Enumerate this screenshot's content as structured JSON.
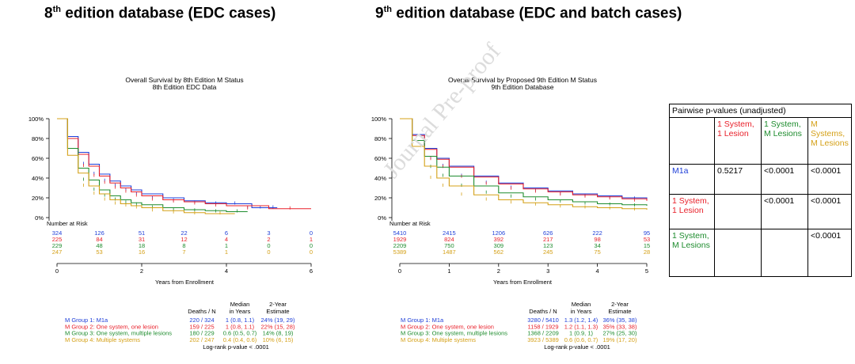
{
  "headings": {
    "left": {
      "pre": "8",
      "sup": "th",
      "post": " edition database (EDC cases)"
    },
    "right": {
      "pre": "9",
      "sup": "th",
      "post": " edition database (EDC and batch cases)"
    }
  },
  "watermark": "Journal Pre-proof",
  "colors": {
    "blue": "#1f3fd8",
    "red": "#e8202a",
    "green": "#1e8c2e",
    "orange": "#d4a017"
  },
  "chart_data": [
    {
      "type": "line",
      "title": "Overall Survival by 8th Edition M Status",
      "subtitle": "8th Edition EDC Data",
      "xlabel": "Years from Enrollment",
      "ylabel": "",
      "xlim": [
        0,
        6
      ],
      "ylim": [
        0,
        100
      ],
      "x_ticks": [
        "0",
        "2",
        "4",
        "6"
      ],
      "y_ticks": [
        "0%",
        "20%",
        "40%",
        "60%",
        "80%",
        "100%"
      ],
      "risk_label": "Number at Risk",
      "risk_times": [
        0,
        1,
        2,
        3,
        4,
        5,
        6
      ],
      "series": [
        {
          "name": "M Group 1: M1a",
          "color": "#1f3fd8",
          "x": [
            0,
            0.25,
            0.5,
            0.75,
            1,
            1.25,
            1.5,
            1.75,
            2,
            2.5,
            3,
            3.5,
            4,
            4.4,
            4.6,
            5,
            5.2
          ],
          "y": [
            100,
            82,
            66,
            54,
            44,
            37,
            32,
            28,
            24,
            20,
            17,
            15,
            14,
            14,
            10,
            10,
            10
          ],
          "risk": [
            "324",
            "126",
            "51",
            "22",
            "6",
            "3",
            "0"
          ]
        },
        {
          "name": "M Group 2: One system, one lesion",
          "color": "#e8202a",
          "x": [
            0,
            0.25,
            0.5,
            0.75,
            1,
            1.25,
            1.5,
            1.75,
            2,
            2.5,
            3,
            3.5,
            4,
            5,
            6
          ],
          "y": [
            100,
            80,
            64,
            52,
            42,
            35,
            30,
            26,
            22,
            18,
            16,
            14,
            12,
            9,
            9
          ],
          "risk": [
            "225",
            "84",
            "31",
            "12",
            "4",
            "2",
            "1"
          ]
        },
        {
          "name": "M Group 3: One system, multiple lesions",
          "color": "#1e8c2e",
          "x": [
            0,
            0.25,
            0.5,
            0.75,
            1,
            1.25,
            1.5,
            1.75,
            2,
            2.5,
            3,
            3.5,
            4,
            4.5
          ],
          "y": [
            100,
            70,
            50,
            38,
            28,
            22,
            18,
            15,
            13,
            10,
            8,
            7,
            6,
            6
          ],
          "risk": [
            "229",
            "48",
            "18",
            "8",
            "1",
            "0",
            "0"
          ]
        },
        {
          "name": "M Group 4: Multiple systems",
          "color": "#d4a017",
          "x": [
            0,
            0.25,
            0.5,
            0.75,
            1,
            1.25,
            1.5,
            1.75,
            2,
            2.5,
            3,
            3.5,
            4.2
          ],
          "y": [
            100,
            63,
            45,
            32,
            24,
            18,
            14,
            12,
            10,
            7,
            5,
            4,
            4
          ],
          "risk": [
            "247",
            "53",
            "16",
            "7",
            "1",
            "0",
            "0"
          ]
        }
      ],
      "summary": {
        "headers": [
          "Deaths / N",
          "Median\nin Years",
          "2-Year\nEstimate"
        ],
        "rows": [
          {
            "label": "M Group 1: M1a",
            "deaths": "220 / 324",
            "median": "1 (0.8, 1.1)",
            "estimate": "24% (19, 29)",
            "color": "#1f3fd8"
          },
          {
            "label": "M Group 2: One system, one lesion",
            "deaths": "159 / 225",
            "median": "1 (0.8, 1.1)",
            "estimate": "22% (15, 28)",
            "color": "#e8202a"
          },
          {
            "label": "M Group 3: One system, multiple lesions",
            "deaths": "180 / 229",
            "median": "0.6 (0.5, 0.7)",
            "estimate": "14% (8, 19)",
            "color": "#1e8c2e"
          },
          {
            "label": "M Group 4: Multiple systems",
            "deaths": "202 / 247",
            "median": "0.4 (0.4, 0.6)",
            "estimate": "10% (6, 15)",
            "color": "#d4a017"
          }
        ],
        "logrank": "Log-rank p-value < .0001"
      }
    },
    {
      "type": "line",
      "title": "Overall Survival by Proposed 9th Edition M Status",
      "subtitle": "9th Edition Database",
      "xlabel": "Years from Enrollment",
      "ylabel": "",
      "xlim": [
        0,
        5
      ],
      "ylim": [
        0,
        100
      ],
      "x_ticks": [
        "0",
        "1",
        "2",
        "3",
        "4",
        "5"
      ],
      "y_ticks": [
        "0%",
        "20%",
        "40%",
        "60%",
        "80%",
        "100%"
      ],
      "risk_label": "Number at Risk",
      "risk_times": [
        0,
        1,
        2,
        3,
        4,
        5
      ],
      "series": [
        {
          "name": "M Group 1: M1a",
          "color": "#1f3fd8",
          "x": [
            0,
            0.25,
            0.5,
            0.75,
            1,
            1.5,
            2,
            2.5,
            3,
            3.5,
            4,
            4.5,
            5
          ],
          "y": [
            100,
            84,
            70,
            60,
            52,
            42,
            35,
            30,
            27,
            24,
            22,
            20,
            19
          ],
          "risk": [
            "5410",
            "2415",
            "1206",
            "626",
            "222",
            "95"
          ]
        },
        {
          "name": "M Group 2: One system, one lesion",
          "color": "#e8202a",
          "x": [
            0,
            0.25,
            0.5,
            0.75,
            1,
            1.5,
            2,
            2.5,
            3,
            3.5,
            4,
            4.5,
            5
          ],
          "y": [
            100,
            83,
            69,
            59,
            51,
            41,
            34,
            29,
            26,
            23,
            21,
            19,
            17
          ],
          "risk": [
            "1929",
            "824",
            "392",
            "217",
            "98",
            "53"
          ]
        },
        {
          "name": "M Group 3: One system, multiple lesions",
          "color": "#1e8c2e",
          "x": [
            0,
            0.25,
            0.5,
            0.75,
            1,
            1.5,
            2,
            2.5,
            3,
            3.5,
            4,
            4.5,
            5
          ],
          "y": [
            100,
            78,
            62,
            51,
            42,
            32,
            25,
            21,
            18,
            16,
            14,
            13,
            12
          ],
          "risk": [
            "2209",
            "750",
            "309",
            "123",
            "34",
            "15"
          ]
        },
        {
          "name": "M Group 4: Multiple systems",
          "color": "#d4a017",
          "x": [
            0,
            0.25,
            0.5,
            0.75,
            1,
            1.5,
            2,
            2.5,
            3,
            3.5,
            4,
            4.5,
            5
          ],
          "y": [
            100,
            72,
            52,
            40,
            32,
            23,
            18,
            15,
            13,
            11,
            10,
            9,
            8
          ],
          "risk": [
            "5389",
            "1487",
            "562",
            "245",
            "75",
            "28"
          ]
        }
      ],
      "summary": {
        "headers": [
          "Deaths / N",
          "Median\nin Years",
          "2-Year\nEstimate"
        ],
        "rows": [
          {
            "label": "M Group 1: M1a",
            "deaths": "3280 / 5410",
            "median": "1.3 (1.2, 1.4)",
            "estimate": "36% (35, 38)",
            "color": "#1f3fd8"
          },
          {
            "label": "M Group 2: One system, one lesion",
            "deaths": "1158 / 1929",
            "median": "1.2 (1.1, 1.3)",
            "estimate": "35% (33, 38)",
            "color": "#e8202a"
          },
          {
            "label": "M Group 3: One system, multiple lesions",
            "deaths": "1368 / 2209",
            "median": "1 (0.9, 1)",
            "estimate": "27% (25, 30)",
            "color": "#1e8c2e"
          },
          {
            "label": "M Group 4: Multiple systems",
            "deaths": "3923 / 5389",
            "median": "0.6 (0.6, 0.7)",
            "estimate": "19% (17, 20)",
            "color": "#d4a017"
          }
        ],
        "logrank": "Log-rank p-value < .0001"
      }
    }
  ],
  "pvalue_table": {
    "title": "Pairwise p-values (unadjusted)",
    "col_headers": [
      {
        "line1": "1 System,",
        "line2": "1 Lesion",
        "color": "#e8202a"
      },
      {
        "line1": "1 System,",
        "line2": "M Lesions",
        "color": "#1e8c2e"
      },
      {
        "line1": "M",
        "line2": "Systems, M Lesions",
        "color": "#d4a017"
      }
    ],
    "rows": [
      {
        "line1": "M1a",
        "line2": "",
        "color": "#1f3fd8",
        "cells": [
          "0.5217",
          "<0.0001",
          "<0.0001"
        ]
      },
      {
        "line1": "1 System,",
        "line2": "1 Lesion",
        "color": "#e8202a",
        "cells": [
          "",
          "<0.0001",
          "<0.0001"
        ]
      },
      {
        "line1": "1 System,",
        "line2": "M Lesions",
        "color": "#1e8c2e",
        "cells": [
          "",
          "",
          "<0.0001"
        ]
      }
    ]
  }
}
